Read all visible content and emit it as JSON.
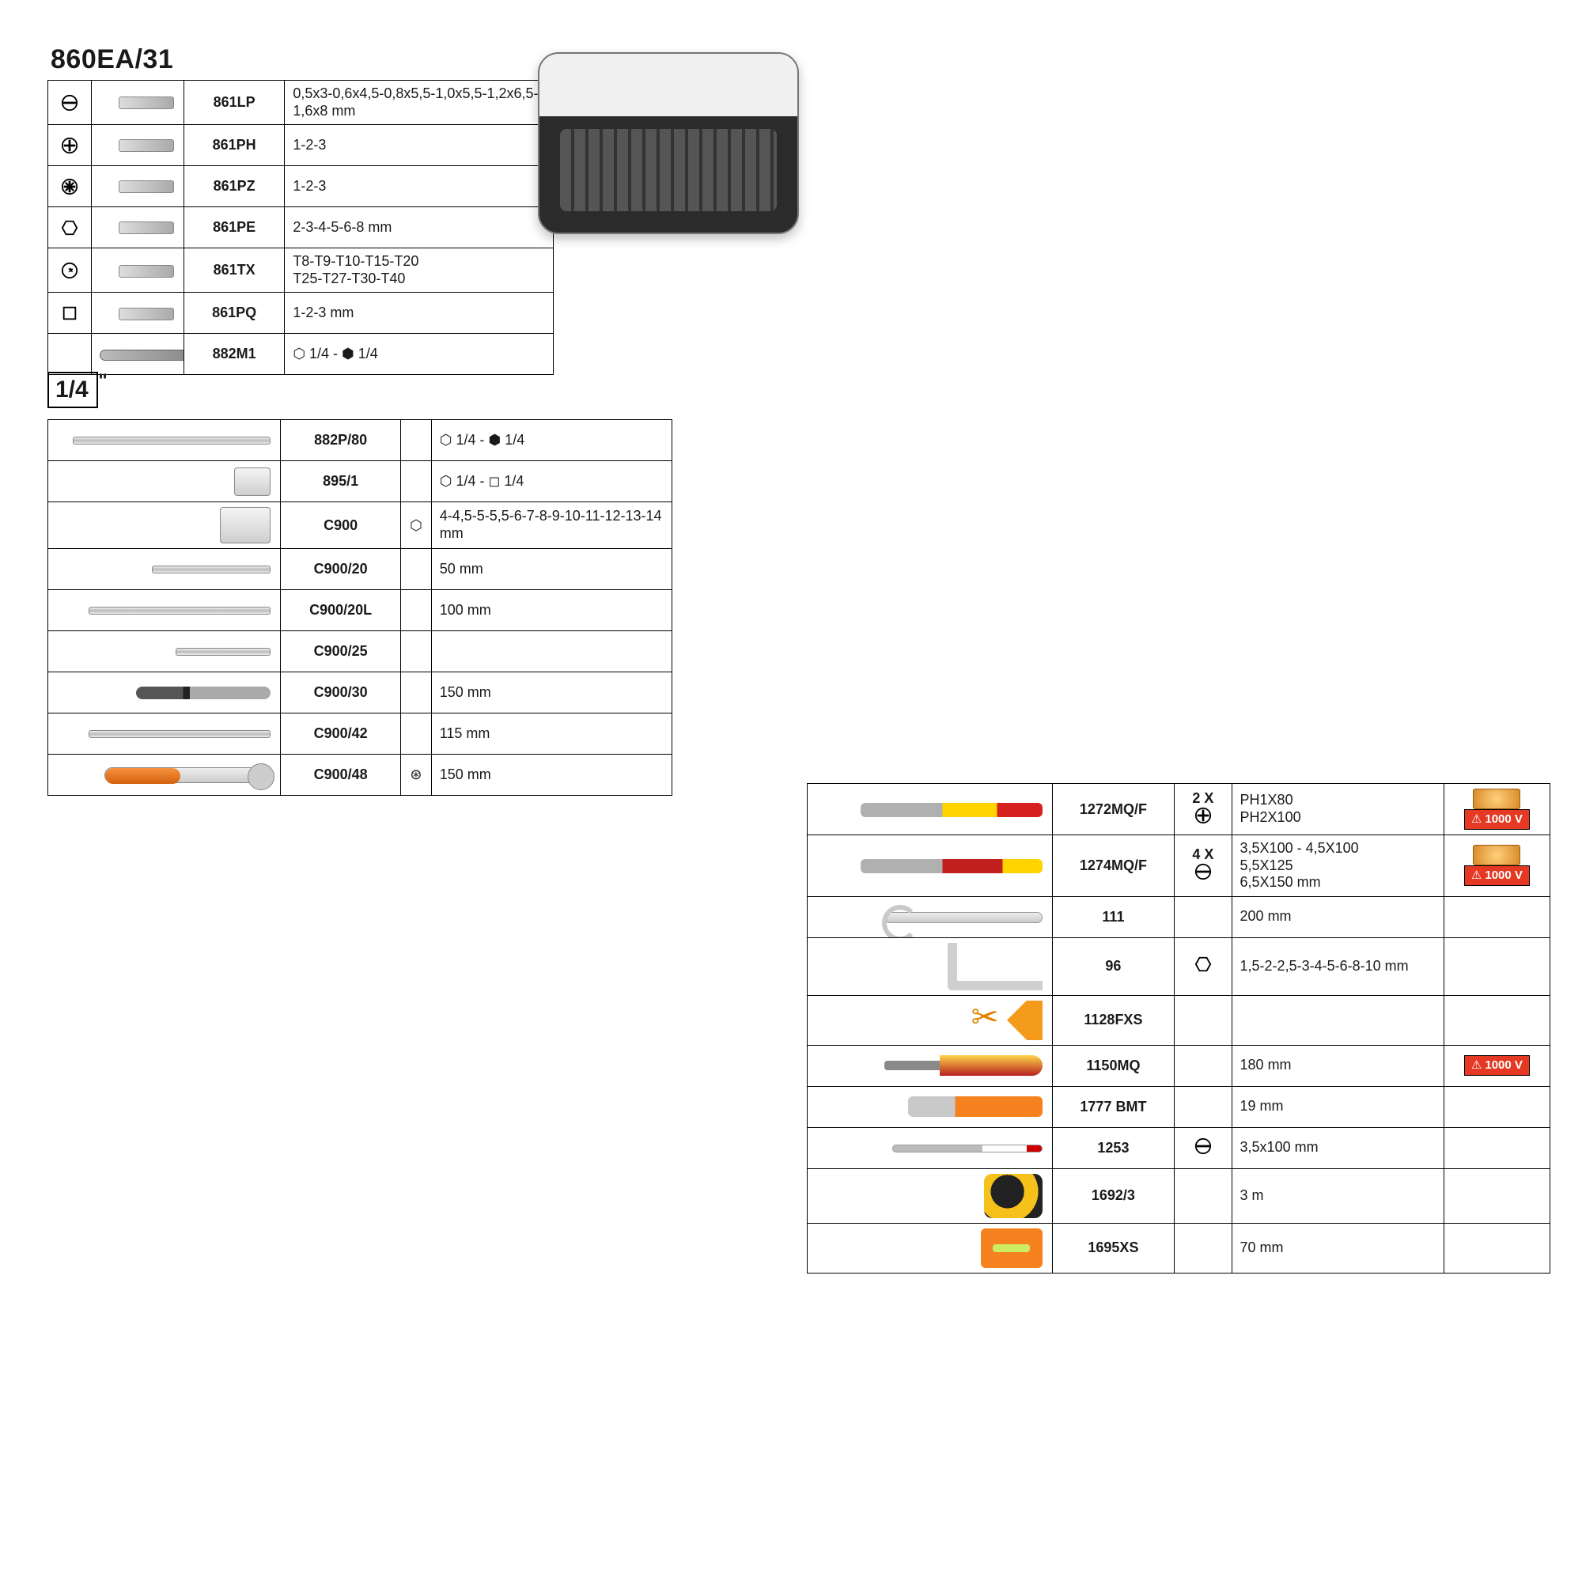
{
  "section_a": {
    "title": "860EA/31",
    "rows": [
      {
        "icon": "slot-circle",
        "code": "861LP",
        "desc": "0,5x3-0,6x4,5-0,8x5,5-1,0x5,5-1,2x6,5-1,6x8 mm"
      },
      {
        "icon": "phillips",
        "code": "861PH",
        "desc": "1-2-3"
      },
      {
        "icon": "pozidriv",
        "code": "861PZ",
        "desc": "1-2-3"
      },
      {
        "icon": "hex",
        "code": "861PE",
        "desc": "2-3-4-5-6-8 mm"
      },
      {
        "icon": "torx",
        "code": "861TX",
        "desc": "T8-T9-T10-T15-T20\nT25-T27-T30-T40"
      },
      {
        "icon": "square",
        "code": "861PQ",
        "desc": "1-2-3 mm"
      },
      {
        "icon": "",
        "code": "882M1",
        "desc": "⬡ 1/4 - ⬢ 1/4",
        "holder": true
      }
    ]
  },
  "quarter_label": "1/4",
  "section_b": {
    "rows": [
      {
        "tool": "bar:250",
        "code": "882P/80",
        "sym": "",
        "desc": "⬡ 1/4 - ⬢ 1/4"
      },
      {
        "tool": "socket",
        "code": "895/1",
        "sym": "",
        "desc": "⬡ 1/4 - ◻ 1/4"
      },
      {
        "tool": "socket-big",
        "code": "C900",
        "sym": "⬡",
        "desc": "4-4,5-5-5,5-6-7-8-9-10-11-12-13-14 mm"
      },
      {
        "tool": "bar:150",
        "code": "C900/20",
        "sym": "",
        "desc": "50 mm"
      },
      {
        "tool": "bar:230",
        "code": "C900/20L",
        "sym": "",
        "desc": "100 mm"
      },
      {
        "tool": "bar:120",
        "code": "C900/25",
        "sym": "",
        "desc": ""
      },
      {
        "tool": "driver",
        "code": "C900/30",
        "sym": "",
        "desc": "150 mm"
      },
      {
        "tool": "bar:230",
        "code": "C900/42",
        "sym": "",
        "desc": "115 mm"
      },
      {
        "tool": "ratchet",
        "code": "C900/48",
        "sym": "⊛",
        "desc": "150 mm"
      }
    ]
  },
  "section_c": {
    "rows": [
      {
        "tool": "sd-yellow",
        "code": "1272MQ/F",
        "qty": "2 X",
        "qico": "phillips",
        "desc": "PH1X80\nPH2X100",
        "v1000": true,
        "tech": true
      },
      {
        "tool": "sd-red",
        "code": "1274MQ/F",
        "qty": "4 X",
        "qico": "slot-circle",
        "desc": "3,5X100 - 4,5X100\n5,5X125\n6,5X150 mm",
        "v1000": true,
        "tech": true
      },
      {
        "tool": "wrench",
        "code": "111",
        "qty": "",
        "qico": "",
        "desc": "200 mm"
      },
      {
        "tool": "hexkey",
        "code": "96",
        "qty": "",
        "qico": "hex",
        "desc": "1,5-2-2,5-3-4-5-6-8-10 mm"
      },
      {
        "tool": "scissors",
        "code": "1128FXS",
        "qty": "",
        "qico": "",
        "desc": ""
      },
      {
        "tool": "pliers",
        "code": "1150MQ",
        "qty": "",
        "qico": "",
        "desc": "180 mm",
        "v1000": true
      },
      {
        "tool": "knife",
        "code": "1777 BMT",
        "qty": "",
        "qico": "",
        "desc": "19 mm"
      },
      {
        "tool": "tester",
        "code": "1253",
        "qty": "",
        "qico": "slot-circle",
        "desc": "3,5x100 mm"
      },
      {
        "tool": "tape",
        "code": "1692/3",
        "qty": "",
        "qico": "",
        "desc": "3 m"
      },
      {
        "tool": "level",
        "code": "1695XS",
        "qty": "",
        "qico": "",
        "desc": "70 mm"
      }
    ]
  },
  "badge_1000v_label": "1000 V"
}
